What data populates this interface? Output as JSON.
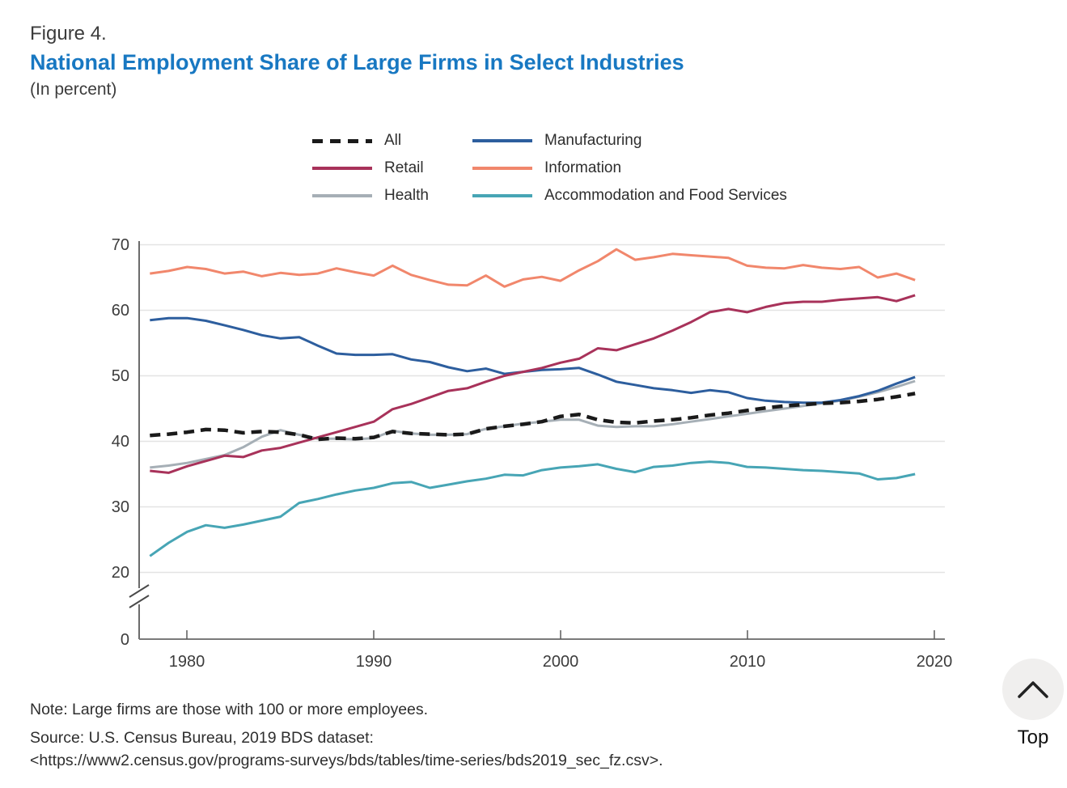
{
  "page": {
    "figure_label": "Figure 4.",
    "title": "National Employment Share of Large Firms in Select Industries",
    "subtitle": "(In percent)",
    "note": "Note: Large firms are those with 100 or more employees.",
    "source_line1": "Source: U.S. Census Bureau, 2019 BDS dataset:",
    "source_line2": "<https://www2.census.gov/programs-surveys/bds/tables/time-series/bds2019_sec_fz.csv>.",
    "back_to_top_label": "Top"
  },
  "colors": {
    "title_blue": "#1878c2",
    "axis": "#6b6b6b",
    "gridline": "#e3e3e3",
    "text": "#3c3c3c"
  },
  "chart_data": {
    "type": "line",
    "title": "National Employment Share of Large Firms in Select Industries",
    "xlabel": "",
    "ylabel": "(In percent)",
    "x_range": [
      1978,
      2019
    ],
    "ylim": [
      0,
      70
    ],
    "y_axis_break": "axis broken between 0 and 20",
    "grid": "horizontal",
    "legend_position": "top",
    "x_tick_labels": [
      "1980",
      "1990",
      "2000",
      "2010",
      "2020"
    ],
    "y_tick_labels": [
      "70",
      "60",
      "50",
      "40",
      "30",
      "20",
      "0"
    ],
    "x": [
      1978,
      1979,
      1980,
      1981,
      1982,
      1983,
      1984,
      1985,
      1986,
      1987,
      1988,
      1989,
      1990,
      1991,
      1992,
      1993,
      1994,
      1995,
      1996,
      1997,
      1998,
      1999,
      2000,
      2001,
      2002,
      2003,
      2004,
      2005,
      2006,
      2007,
      2008,
      2009,
      2010,
      2011,
      2012,
      2013,
      2014,
      2015,
      2016,
      2017,
      2018,
      2019
    ],
    "series": [
      {
        "name": "All",
        "color": "#1a1a1a",
        "dash": "dashed",
        "values": [
          40.9,
          41.1,
          41.4,
          41.8,
          41.7,
          41.3,
          41.5,
          41.4,
          41.0,
          40.3,
          40.5,
          40.4,
          40.6,
          41.5,
          41.2,
          41.1,
          41.0,
          41.1,
          41.9,
          42.3,
          42.6,
          43.0,
          43.8,
          44.1,
          43.3,
          42.9,
          42.8,
          43.1,
          43.3,
          43.6,
          44.0,
          44.3,
          44.7,
          45.1,
          45.4,
          45.6,
          45.8,
          45.9,
          46.1,
          46.4,
          46.8,
          47.3
        ]
      },
      {
        "name": "Manufacturing",
        "color": "#2d5e9e",
        "dash": "solid",
        "values": [
          58.5,
          58.8,
          58.8,
          58.4,
          57.7,
          57.0,
          56.2,
          55.7,
          55.9,
          54.6,
          53.4,
          53.2,
          53.2,
          53.3,
          52.5,
          52.1,
          51.3,
          50.7,
          51.1,
          50.3,
          50.6,
          50.9,
          51.0,
          51.2,
          50.2,
          49.1,
          48.6,
          48.1,
          47.8,
          47.4,
          47.8,
          47.5,
          46.6,
          46.2,
          46.0,
          45.9,
          45.9,
          46.3,
          46.9,
          47.7,
          48.8,
          49.8
        ]
      },
      {
        "name": "Retail",
        "color": "#a8325a",
        "dash": "solid",
        "values": [
          35.5,
          35.2,
          36.2,
          37.0,
          37.8,
          37.6,
          38.6,
          39.0,
          39.8,
          40.6,
          41.4,
          42.2,
          43.0,
          44.9,
          45.7,
          46.7,
          47.7,
          48.1,
          49.1,
          50.0,
          50.6,
          51.2,
          52.0,
          52.6,
          54.2,
          53.9,
          54.8,
          55.7,
          56.9,
          58.2,
          59.7,
          60.2,
          59.7,
          60.5,
          61.1,
          61.3,
          61.3,
          61.6,
          61.8,
          62.0,
          61.4,
          62.3
        ]
      },
      {
        "name": "Information",
        "color": "#f1876c",
        "dash": "solid",
        "values": [
          65.6,
          66.0,
          66.6,
          66.3,
          65.6,
          65.9,
          65.2,
          65.7,
          65.4,
          65.6,
          66.4,
          65.8,
          65.3,
          66.8,
          65.4,
          64.6,
          63.9,
          63.8,
          65.3,
          63.6,
          64.7,
          65.1,
          64.5,
          66.1,
          67.5,
          69.3,
          67.7,
          68.1,
          68.6,
          68.4,
          68.2,
          68.0,
          66.8,
          66.5,
          66.4,
          66.9,
          66.5,
          66.3,
          66.6,
          65.0,
          65.6,
          64.6
        ]
      },
      {
        "name": "Health",
        "color": "#a6afb6",
        "dash": "solid",
        "values": [
          36.0,
          36.3,
          36.7,
          37.3,
          37.9,
          39.1,
          40.7,
          41.7,
          41.0,
          40.4,
          40.4,
          40.3,
          40.5,
          41.6,
          41.2,
          41.0,
          41.0,
          41.1,
          41.9,
          42.3,
          42.7,
          43.0,
          43.3,
          43.3,
          42.4,
          42.2,
          42.3,
          42.3,
          42.6,
          43.0,
          43.4,
          43.8,
          44.2,
          44.6,
          45.0,
          45.4,
          45.8,
          46.2,
          46.8,
          47.5,
          48.3,
          49.2
        ]
      },
      {
        "name": "Accommodation and Food Services",
        "color": "#47a5b5",
        "dash": "solid",
        "values": [
          22.5,
          24.5,
          26.2,
          27.2,
          26.8,
          27.3,
          27.9,
          28.5,
          30.6,
          31.2,
          31.9,
          32.5,
          32.9,
          33.6,
          33.8,
          32.9,
          33.4,
          33.9,
          34.3,
          34.9,
          34.8,
          35.6,
          36.0,
          36.2,
          36.5,
          35.8,
          35.3,
          36.1,
          36.3,
          36.7,
          36.9,
          36.7,
          36.1,
          36.0,
          35.8,
          35.6,
          35.5,
          35.3,
          35.1,
          34.2,
          34.4,
          35.0
        ]
      }
    ]
  }
}
